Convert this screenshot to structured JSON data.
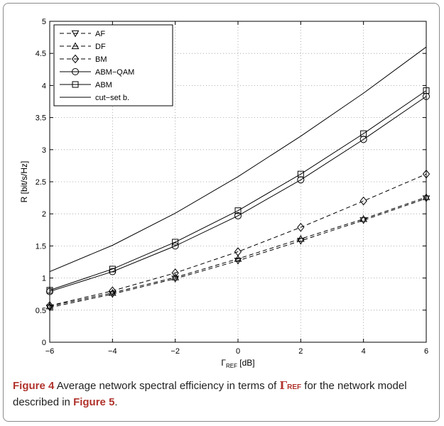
{
  "chart_data": {
    "type": "line",
    "xlabel": "Γ",
    "xlabel_sub": "REF",
    "xlabel_unit": " [dB]",
    "ylabel": "R [bit/s/Hz]",
    "xlim": [
      -6,
      6
    ],
    "ylim": [
      0,
      5
    ],
    "xticks": [
      -6,
      -4,
      -2,
      0,
      2,
      4,
      6
    ],
    "yticks": [
      0,
      0.5,
      1,
      1.5,
      2,
      2.5,
      3,
      3.5,
      4,
      4.5,
      5
    ],
    "grid": true,
    "legend_position": "top-left",
    "x": [
      -6,
      -4,
      -2,
      0,
      2,
      4,
      6
    ],
    "series": [
      {
        "name": "AF",
        "marker": "triangle-down",
        "dash": true,
        "values": [
          0.54,
          0.75,
          0.99,
          1.27,
          1.58,
          1.9,
          2.24
        ]
      },
      {
        "name": "DF",
        "marker": "triangle-up",
        "dash": true,
        "values": [
          0.56,
          0.77,
          1.01,
          1.3,
          1.61,
          1.92,
          2.26
        ]
      },
      {
        "name": "BM",
        "marker": "diamond",
        "dash": true,
        "values": [
          0.57,
          0.8,
          1.08,
          1.41,
          1.79,
          2.2,
          2.62
        ]
      },
      {
        "name": "ABM−QAM",
        "marker": "circle",
        "dash": false,
        "values": [
          0.79,
          1.1,
          1.5,
          1.97,
          2.53,
          3.16,
          3.83
        ]
      },
      {
        "name": "ABM",
        "marker": "square",
        "dash": false,
        "values": [
          0.81,
          1.14,
          1.56,
          2.05,
          2.62,
          3.25,
          3.92
        ]
      },
      {
        "name": "cut−set b.",
        "marker": "none",
        "dash": false,
        "values": [
          1.1,
          1.51,
          2.01,
          2.58,
          3.21,
          3.88,
          4.6
        ]
      }
    ]
  },
  "caption": {
    "figure_label": "Figure 4",
    "text_before": " Average network spectral efficiency in terms of ",
    "symbol": "Γ",
    "symbol_sub": "REF",
    "text_mid": " for the network model described in ",
    "ref": "Figure 5",
    "text_end": "."
  }
}
